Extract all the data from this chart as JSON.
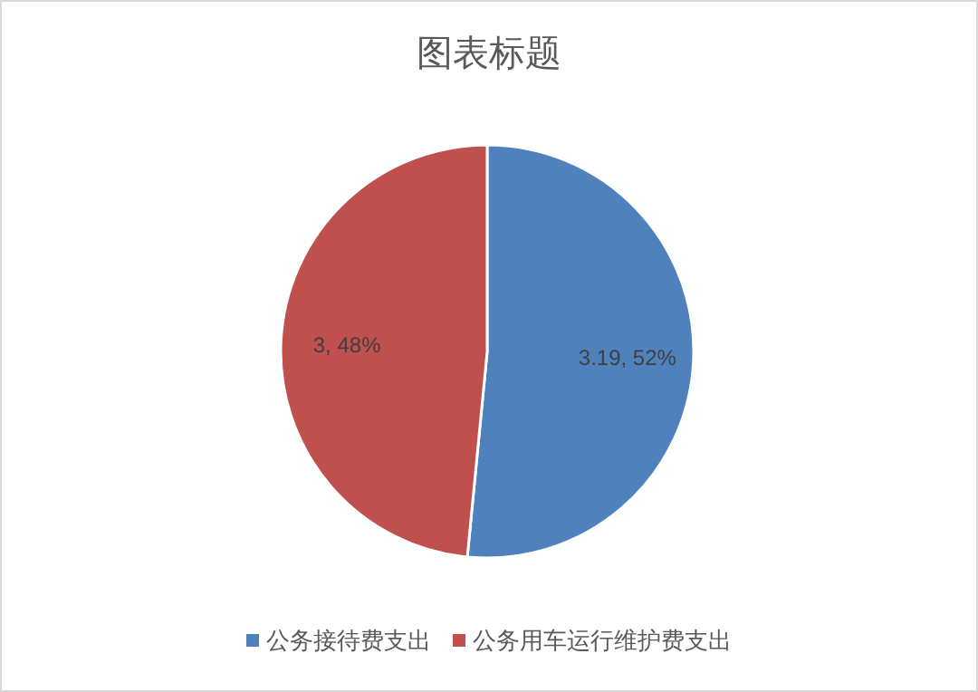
{
  "chart_data": {
    "type": "pie",
    "title": "图表标题",
    "categories": [
      "公务接待费支出",
      "公务用车运行维护费支出"
    ],
    "values": [
      3.19,
      3
    ],
    "colors": [
      "#4f81bd",
      "#c0504d"
    ],
    "value_labels": [
      "3.19, 52%",
      "3, 48%"
    ],
    "legend": "bottom"
  }
}
